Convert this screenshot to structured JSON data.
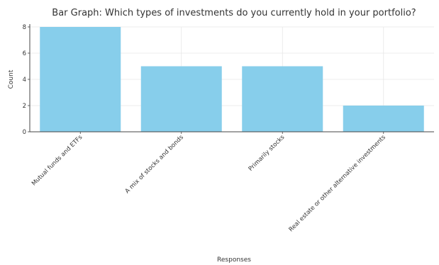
{
  "chart_data": {
    "type": "bar",
    "title": "Bar Graph: Which types of investments do you currently hold in your portfolio?",
    "xlabel": "Responses",
    "ylabel": "Count",
    "categories": [
      "Mutual funds and ETFs",
      "A mix of stocks and bonds",
      "Primarily stocks",
      "Real estate or other alternative investments"
    ],
    "values": [
      8,
      5,
      5,
      2
    ],
    "ylim": [
      0,
      8
    ],
    "yticks": [
      0,
      2,
      4,
      6,
      8
    ],
    "grid": true,
    "bar_color": "#87ceeb"
  }
}
